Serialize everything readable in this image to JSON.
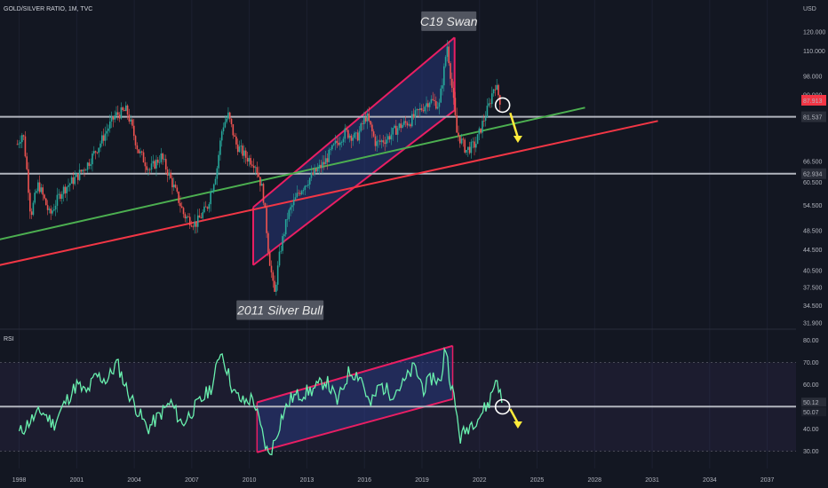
{
  "header": {
    "symbol_title": "GOLD/SILVER RATIO, 1M, TVC",
    "currency": "USD"
  },
  "chart_data": [
    {
      "type": "candlestick",
      "title": "GOLD/SILVER RATIO, 1M, TVC",
      "y_scale": "log",
      "ylim": [
        31.5,
        128
      ],
      "xlim": [
        1997.0,
        2038.5
      ],
      "y_ticks": [
        "120.000",
        "110.000",
        "98.000",
        "90.000",
        "81.537",
        "66.500",
        "60.500",
        "54.500",
        "48.500",
        "44.500",
        "40.500",
        "37.500",
        "34.500",
        "31.900"
      ],
      "y_tick_values": [
        120,
        110,
        98,
        90,
        81.537,
        66.5,
        60.5,
        54.5,
        48.5,
        44.5,
        40.5,
        37.5,
        34.5,
        31.9
      ],
      "x_ticks": [
        "1998",
        "2001",
        "2004",
        "2007",
        "2010",
        "2013",
        "2016",
        "2019",
        "2022",
        "2025",
        "2028",
        "2031",
        "2034",
        "2037"
      ],
      "x_tick_values": [
        1998,
        2001,
        2004,
        2007,
        2010,
        2013,
        2016,
        2019,
        2022,
        2025,
        2028,
        2031,
        2034,
        2037
      ],
      "price_path": [
        [
          1997.9,
          72
        ],
        [
          1998.2,
          76
        ],
        [
          1998.6,
          52
        ],
        [
          1999.0,
          60
        ],
        [
          1999.6,
          52
        ],
        [
          2000.2,
          58
        ],
        [
          2001.0,
          62
        ],
        [
          2001.6,
          66
        ],
        [
          2002.2,
          72
        ],
        [
          2003.0,
          82
        ],
        [
          2003.6,
          84
        ],
        [
          2004.2,
          70
        ],
        [
          2004.8,
          64
        ],
        [
          2005.4,
          68
        ],
        [
          2006.0,
          60
        ],
        [
          2006.6,
          52
        ],
        [
          2007.2,
          50
        ],
        [
          2007.8,
          54
        ],
        [
          2008.3,
          64
        ],
        [
          2008.6,
          78
        ],
        [
          2008.9,
          82
        ],
        [
          2009.3,
          72
        ],
        [
          2009.8,
          68
        ],
        [
          2010.3,
          66
        ],
        [
          2010.7,
          58
        ],
        [
          2011.0,
          44
        ],
        [
          2011.3,
          36
        ],
        [
          2011.6,
          44
        ],
        [
          2012.0,
          52
        ],
        [
          2012.6,
          58
        ],
        [
          2013.2,
          62
        ],
        [
          2013.9,
          66
        ],
        [
          2014.5,
          72
        ],
        [
          2015.0,
          76
        ],
        [
          2015.6,
          74
        ],
        [
          2016.1,
          82
        ],
        [
          2016.6,
          72
        ],
        [
          2017.2,
          74
        ],
        [
          2017.8,
          78
        ],
        [
          2018.4,
          80
        ],
        [
          2018.9,
          84
        ],
        [
          2019.4,
          88
        ],
        [
          2019.9,
          86
        ],
        [
          2020.2,
          104
        ],
        [
          2020.3,
          114
        ],
        [
          2020.5,
          98
        ],
        [
          2020.8,
          76
        ],
        [
          2021.3,
          70
        ],
        [
          2021.8,
          72
        ],
        [
          2022.2,
          80
        ],
        [
          2022.5,
          86
        ],
        [
          2022.8,
          95
        ],
        [
          2023.1,
          87
        ]
      ],
      "price_levels": [
        {
          "label": "81.537",
          "value": 81.537,
          "color": "#b2b5be"
        },
        {
          "label": "62.934",
          "value": 62.934,
          "color": "#b2b5be"
        }
      ],
      "current_price": {
        "label": "87.913",
        "value": 87.913,
        "color": "#f23645"
      },
      "trendlines": [
        {
          "name": "green support",
          "color": "#4caf50",
          "from": [
            1996.6,
            46.3
          ],
          "to": [
            2027.5,
            85.0
          ]
        },
        {
          "name": "red support",
          "color": "#f23645",
          "from": [
            1996.6,
            41.2
          ],
          "to": [
            2031.3,
            80.0
          ]
        }
      ],
      "channel": {
        "color": "#e91e63",
        "fill": "#2a3f8f",
        "lower": [
          [
            2010.2,
            41.5
          ],
          [
            2020.7,
            84.0
          ]
        ],
        "upper": [
          [
            2010.2,
            54.0
          ],
          [
            2020.7,
            117.0
          ]
        ]
      },
      "annotations": [
        {
          "text": "C19 Swan",
          "x": 2020.4,
          "y": 126
        },
        {
          "text": "2011 Silver Bull",
          "x": 2011.6,
          "y": 33.8
        }
      ],
      "marker_circle": {
        "x": 2023.2,
        "y": 86.0
      },
      "down_arrow": {
        "from": [
          2023.6,
          83
        ],
        "to": [
          2024.0,
          73
        ],
        "color": "#ffeb3b"
      }
    },
    {
      "type": "line",
      "title": "RSI",
      "ylim": [
        27,
        81
      ],
      "y_ticks": [
        "80.00",
        "70.00",
        "60.00",
        "50.12",
        "50.07",
        "40.00",
        "30.00"
      ],
      "y_tick_values": [
        80,
        70,
        60,
        50.12,
        50.07,
        40,
        30
      ],
      "band": [
        30,
        70
      ],
      "series": [
        {
          "color": "#69f0ae",
          "x": [
            1998.0,
            1998.6,
            1999.2,
            1999.8,
            2000.4,
            2001.0,
            2001.5,
            2002.0,
            2002.6,
            2003.1,
            2003.6,
            2004.2,
            2004.7,
            2005.3,
            2005.9,
            2006.5,
            2007.0,
            2007.6,
            2008.1,
            2008.5,
            2008.8,
            2009.2,
            2009.7,
            2010.2,
            2010.6,
            2011.0,
            2011.3,
            2011.7,
            2012.2,
            2012.8,
            2013.4,
            2014.0,
            2014.6,
            2015.2,
            2015.8,
            2016.3,
            2016.8,
            2017.4,
            2018.0,
            2018.6,
            2019.1,
            2019.6,
            2020.0,
            2020.2,
            2020.4,
            2020.7,
            2021.0,
            2021.5,
            2022.0,
            2022.5,
            2022.9,
            2023.2
          ],
          "values": [
            38,
            44,
            48,
            42,
            52,
            60,
            56,
            64,
            62,
            70,
            58,
            48,
            40,
            46,
            52,
            42,
            48,
            54,
            60,
            76,
            68,
            56,
            52,
            54,
            40,
            28,
            34,
            46,
            54,
            56,
            58,
            62,
            52,
            66,
            64,
            50,
            60,
            56,
            60,
            68,
            58,
            64,
            60,
            80,
            66,
            52,
            36,
            42,
            46,
            52,
            64,
            50
          ]
        }
      ],
      "level": {
        "value": 50.12,
        "color": "#b2b5be"
      },
      "channel": {
        "color": "#e91e63",
        "fill": "#2a3f8f",
        "lower": [
          [
            2010.4,
            29.5
          ],
          [
            2020.6,
            53.5
          ]
        ],
        "upper": [
          [
            2010.4,
            52.0
          ],
          [
            2020.6,
            77.5
          ]
        ]
      },
      "marker_circle": {
        "x": 2023.2,
        "y": 50.0
      },
      "down_arrow": {
        "from": [
          2023.6,
          49
        ],
        "to": [
          2024.0,
          41
        ],
        "color": "#ffeb3b"
      }
    }
  ]
}
